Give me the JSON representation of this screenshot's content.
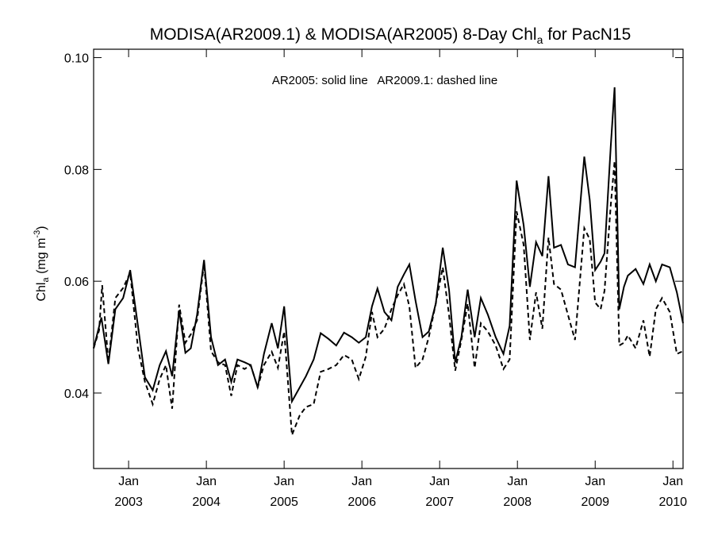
{
  "chart_data": {
    "type": "line",
    "title": "MODISA(AR2009.1) & MODISA(AR2005) 8-Day Chla for PacN15",
    "title_parts": {
      "prefix": "MODISA(AR2009.1) & MODISA(AR2005) 8-Day Chl",
      "subscript": "a",
      "suffix": " for PacN15"
    },
    "ylabel": "Chla (mg m-3)",
    "ylabel_parts": {
      "base": "Chl",
      "subscript": "a",
      "unit": " (mg m",
      "superscript": "-3",
      "close": ")"
    },
    "annotation": "AR2005: solid line   AR2009.1: dashed line",
    "xlim": [
      2002.55,
      2010.13
    ],
    "ylim": [
      0.0265,
      0.1015
    ],
    "yticks": [
      0.04,
      0.06,
      0.08,
      0.1
    ],
    "ytick_labels": [
      "0.04",
      "0.06",
      "0.08",
      "0.10"
    ],
    "xticks": [
      2003,
      2004,
      2005,
      2006,
      2007,
      2008,
      2009,
      2010
    ],
    "xtick_month_labels": [
      "Jan",
      "Jan",
      "Jan",
      "Jan",
      "Jan",
      "Jan",
      "Jan",
      "Jan"
    ],
    "xtick_year_labels": [
      "2003",
      "2004",
      "2005",
      "2006",
      "2007",
      "2008",
      "2009",
      "2010"
    ],
    "grid": false,
    "series": [
      {
        "name": "AR2005",
        "style": "solid",
        "color": "#000000",
        "x": [
          2002.55,
          2002.65,
          2002.74,
          2002.83,
          2002.93,
          2003.02,
          2003.12,
          2003.21,
          2003.31,
          2003.4,
          2003.48,
          2003.56,
          2003.65,
          2003.73,
          2003.8,
          2003.88,
          2003.97,
          2004.06,
          2004.15,
          2004.24,
          2004.32,
          2004.4,
          2004.49,
          2004.57,
          2004.66,
          2004.74,
          2004.84,
          2004.92,
          2005.0,
          2005.1,
          2005.2,
          2005.28,
          2005.38,
          2005.47,
          2005.57,
          2005.67,
          2005.77,
          2005.87,
          2005.96,
          2006.05,
          2006.13,
          2006.2,
          2006.29,
          2006.38,
          2006.46,
          2006.54,
          2006.61,
          2006.69,
          2006.78,
          2006.86,
          2006.95,
          2007.04,
          2007.12,
          2007.2,
          2007.28,
          2007.36,
          2007.45,
          2007.53,
          2007.62,
          2007.72,
          2007.82,
          2007.9,
          2007.99,
          2008.08,
          2008.16,
          2008.24,
          2008.32,
          2008.4,
          2008.47,
          2008.56,
          2008.65,
          2008.74,
          2008.86,
          2008.93,
          2009.0,
          2009.07,
          2009.12,
          2009.2,
          2009.25,
          2009.31,
          2009.37,
          2009.42,
          2009.52,
          2009.62,
          2009.7,
          2009.78,
          2009.86,
          2009.96,
          2010.05,
          2010.13
        ],
        "y": [
          0.048,
          0.0535,
          0.0452,
          0.055,
          0.057,
          0.062,
          0.052,
          0.0428,
          0.0405,
          0.045,
          0.0475,
          0.043,
          0.0548,
          0.0472,
          0.048,
          0.054,
          0.0638,
          0.05,
          0.045,
          0.046,
          0.042,
          0.046,
          0.0455,
          0.045,
          0.041,
          0.047,
          0.0525,
          0.048,
          0.0555,
          0.0385,
          0.041,
          0.043,
          0.046,
          0.0507,
          0.0497,
          0.0485,
          0.0508,
          0.05,
          0.049,
          0.05,
          0.0555,
          0.0587,
          0.0545,
          0.053,
          0.059,
          0.0612,
          0.063,
          0.0565,
          0.05,
          0.051,
          0.056,
          0.066,
          0.0585,
          0.0455,
          0.05,
          0.0585,
          0.05,
          0.057,
          0.054,
          0.05,
          0.047,
          0.052,
          0.078,
          0.07,
          0.059,
          0.067,
          0.0645,
          0.0788,
          0.066,
          0.0665,
          0.063,
          0.0625,
          0.0823,
          0.0745,
          0.062,
          0.0635,
          0.065,
          0.084,
          0.0947,
          0.055,
          0.059,
          0.061,
          0.0622,
          0.0595,
          0.063,
          0.06,
          0.063,
          0.0625,
          0.058,
          0.0525
        ]
      },
      {
        "name": "AR2009.1",
        "style": "dashed",
        "color": "#000000",
        "x": [
          2002.55,
          2002.62,
          2002.66,
          2002.74,
          2002.83,
          2002.93,
          2003.02,
          2003.12,
          2003.21,
          2003.31,
          2003.4,
          2003.48,
          2003.52,
          2003.56,
          2003.65,
          2003.73,
          2003.8,
          2003.88,
          2003.97,
          2004.06,
          2004.15,
          2004.24,
          2004.32,
          2004.4,
          2004.49,
          2004.57,
          2004.66,
          2004.74,
          2004.84,
          2004.92,
          2005.0,
          2005.1,
          2005.2,
          2005.28,
          2005.38,
          2005.47,
          2005.57,
          2005.67,
          2005.77,
          2005.87,
          2005.96,
          2006.05,
          2006.13,
          2006.2,
          2006.29,
          2006.38,
          2006.46,
          2006.54,
          2006.61,
          2006.69,
          2006.78,
          2006.86,
          2006.95,
          2007.04,
          2007.12,
          2007.2,
          2007.28,
          2007.36,
          2007.45,
          2007.53,
          2007.62,
          2007.72,
          2007.82,
          2007.9,
          2007.99,
          2008.08,
          2008.16,
          2008.24,
          2008.32,
          2008.4,
          2008.47,
          2008.56,
          2008.65,
          2008.74,
          2008.86,
          2008.93,
          2009.0,
          2009.07,
          2009.12,
          2009.2,
          2009.25,
          2009.31,
          2009.37,
          2009.42,
          2009.52,
          2009.62,
          2009.7,
          2009.78,
          2009.86,
          2009.96,
          2010.05,
          2010.13
        ],
        "y": [
          0.048,
          0.0512,
          0.0593,
          0.0455,
          0.057,
          0.0588,
          0.0615,
          0.048,
          0.042,
          0.038,
          0.0425,
          0.045,
          0.041,
          0.0372,
          0.0558,
          0.049,
          0.0505,
          0.053,
          0.0632,
          0.0475,
          0.0455,
          0.045,
          0.0395,
          0.045,
          0.0443,
          0.045,
          0.041,
          0.045,
          0.0474,
          0.0445,
          0.051,
          0.0325,
          0.036,
          0.0375,
          0.038,
          0.0438,
          0.0443,
          0.045,
          0.0468,
          0.046,
          0.0425,
          0.0465,
          0.0545,
          0.05,
          0.0515,
          0.055,
          0.0575,
          0.0595,
          0.0555,
          0.0445,
          0.046,
          0.05,
          0.056,
          0.0625,
          0.054,
          0.044,
          0.0495,
          0.056,
          0.0445,
          0.0525,
          0.051,
          0.0485,
          0.0443,
          0.046,
          0.0725,
          0.0665,
          0.0495,
          0.058,
          0.0515,
          0.0678,
          0.0595,
          0.0585,
          0.054,
          0.0495,
          0.0695,
          0.0675,
          0.0562,
          0.055,
          0.0583,
          0.0735,
          0.0815,
          0.0485,
          0.049,
          0.0503,
          0.048,
          0.053,
          0.0465,
          0.055,
          0.057,
          0.0545,
          0.047,
          0.0475
        ]
      }
    ]
  }
}
